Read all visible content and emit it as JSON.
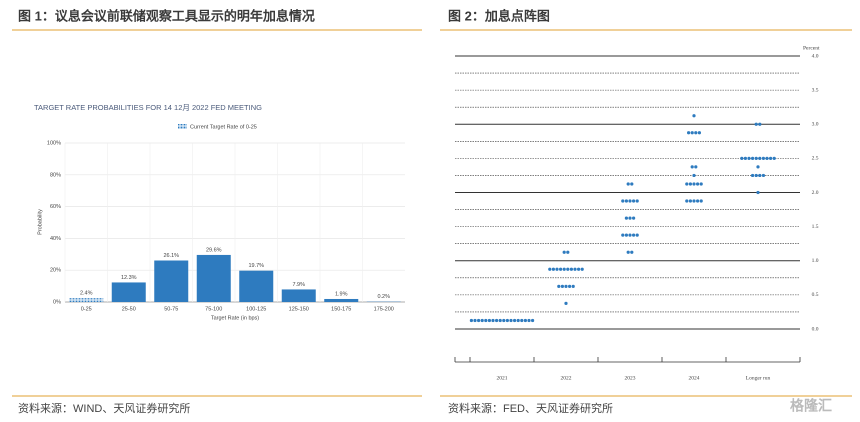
{
  "chart_data": [
    {
      "type": "bar",
      "figure_title": "图 1：议息会议前联储观察工具显示的明年加息情况",
      "title": "TARGET RATE PROBABILITIES FOR 14 12月 2022 FED MEETING",
      "legend": "Current Target Rate of 0-25",
      "highlight_category": "0-25",
      "ylabel": "Probability",
      "xlabel": "Target Rate (in bps)",
      "categories": [
        "0-25",
        "25-50",
        "50-75",
        "75-100",
        "100-125",
        "125-150",
        "150-175",
        "175-200"
      ],
      "values": [
        2.4,
        12.3,
        26.1,
        29.6,
        19.7,
        7.9,
        1.9,
        0.2
      ],
      "value_labels": [
        "2.4%",
        "12.3%",
        "26.1%",
        "29.6%",
        "19.7%",
        "7.9%",
        "1.9%",
        "0.2%"
      ],
      "color": "#2e7bbf",
      "ylim": [
        0,
        100
      ],
      "yticks": [
        {
          "value": 0,
          "label": "0%"
        },
        {
          "value": 20,
          "label": "20%"
        },
        {
          "value": 40,
          "label": "40%"
        },
        {
          "value": 60,
          "label": "60%"
        },
        {
          "value": 80,
          "label": "80%"
        },
        {
          "value": 100,
          "label": "100%"
        }
      ],
      "grid": true,
      "source": "资料来源：WIND、天风证券研究所"
    },
    {
      "type": "dot_plot",
      "figure_title": "图 2：加息点阵图",
      "ylabel": "Percent",
      "categories": [
        "2021",
        "2022",
        "2023",
        "2024",
        "Longer run"
      ],
      "dots": [
        [
          {
            "rate": 0.125,
            "count": 18
          }
        ],
        [
          {
            "rate": 1.125,
            "count": 2
          },
          {
            "rate": 0.875,
            "count": 10
          },
          {
            "rate": 0.625,
            "count": 5
          },
          {
            "rate": 0.375,
            "count": 1
          }
        ],
        [
          {
            "rate": 2.125,
            "count": 2
          },
          {
            "rate": 1.875,
            "count": 5
          },
          {
            "rate": 1.625,
            "count": 3
          },
          {
            "rate": 1.375,
            "count": 5
          },
          {
            "rate": 1.125,
            "count": 2
          }
        ],
        [
          {
            "rate": 3.125,
            "count": 1
          },
          {
            "rate": 2.875,
            "count": 4
          },
          {
            "rate": 2.375,
            "count": 2
          },
          {
            "rate": 2.25,
            "count": 1
          },
          {
            "rate": 2.125,
            "count": 5
          },
          {
            "rate": 1.875,
            "count": 5
          }
        ],
        [
          {
            "rate": 3.0,
            "count": 2
          },
          {
            "rate": 2.5,
            "count": 10
          },
          {
            "rate": 2.375,
            "count": 1
          },
          {
            "rate": 2.25,
            "count": 4
          },
          {
            "rate": 2.0,
            "count": 1
          }
        ]
      ],
      "color": "#2e7bbf",
      "ylim": [
        0,
        4
      ],
      "yticks": [
        {
          "value": 0,
          "label": "0.0"
        },
        0.5,
        {
          "value": 1,
          "label": "1.0"
        },
        1.5,
        {
          "value": 2,
          "label": "2.0"
        },
        2.5,
        {
          "value": 3,
          "label": "3.0"
        },
        3.5,
        {
          "value": 4,
          "label": "4.0"
        }
      ],
      "minor_yticks": [
        0.25,
        0.75,
        1.25,
        1.75,
        2.25,
        2.75,
        3.25,
        3.75
      ],
      "grid": true,
      "source": "资料来源：FED、天风证券研究所",
      "watermark": "格隆汇"
    }
  ]
}
